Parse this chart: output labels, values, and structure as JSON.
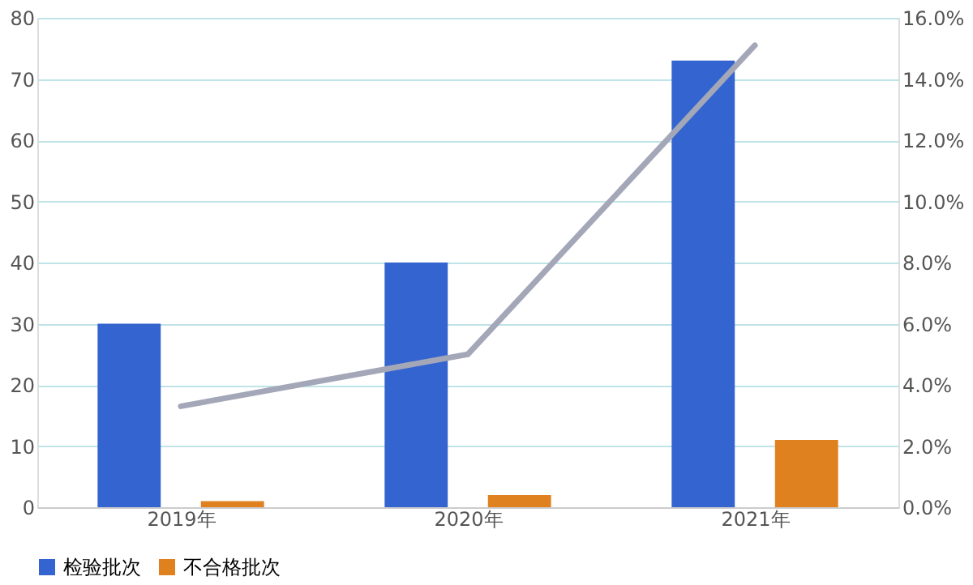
{
  "chart_data": {
    "type": "bar",
    "categories": [
      "2019年",
      "2020年",
      "2021年"
    ],
    "series": [
      {
        "name": "检验批次",
        "color": "#3464cf",
        "values": [
          30,
          40,
          73
        ]
      },
      {
        "name": "不合格批次",
        "color": "#e0811f",
        "values": [
          1,
          2,
          11
        ]
      },
      {
        "type": "line",
        "axis": "y2",
        "color": "#a3a7b8",
        "values": [
          3.3,
          5.0,
          15.1
        ],
        "marker": "none",
        "line_style": "solid"
      }
    ],
    "ylim": [
      0,
      80
    ],
    "yticks": [
      0,
      10,
      20,
      30,
      40,
      50,
      60,
      70,
      80
    ],
    "y2lim": [
      0,
      16
    ],
    "y2ticks": [
      {
        "value": 0,
        "label": "0.0%"
      },
      {
        "value": 2,
        "label": "2.0%"
      },
      {
        "value": 4,
        "label": "4.0%"
      },
      {
        "value": 6,
        "label": "6.0%"
      },
      {
        "value": 8,
        "label": "8.0%"
      },
      {
        "value": 10,
        "label": "10.0%"
      },
      {
        "value": 12,
        "label": "12.0%"
      },
      {
        "value": 14,
        "label": "14.0%"
      },
      {
        "value": 16,
        "label": "16.0%"
      }
    ],
    "grid": "y",
    "legend": "bottom"
  }
}
